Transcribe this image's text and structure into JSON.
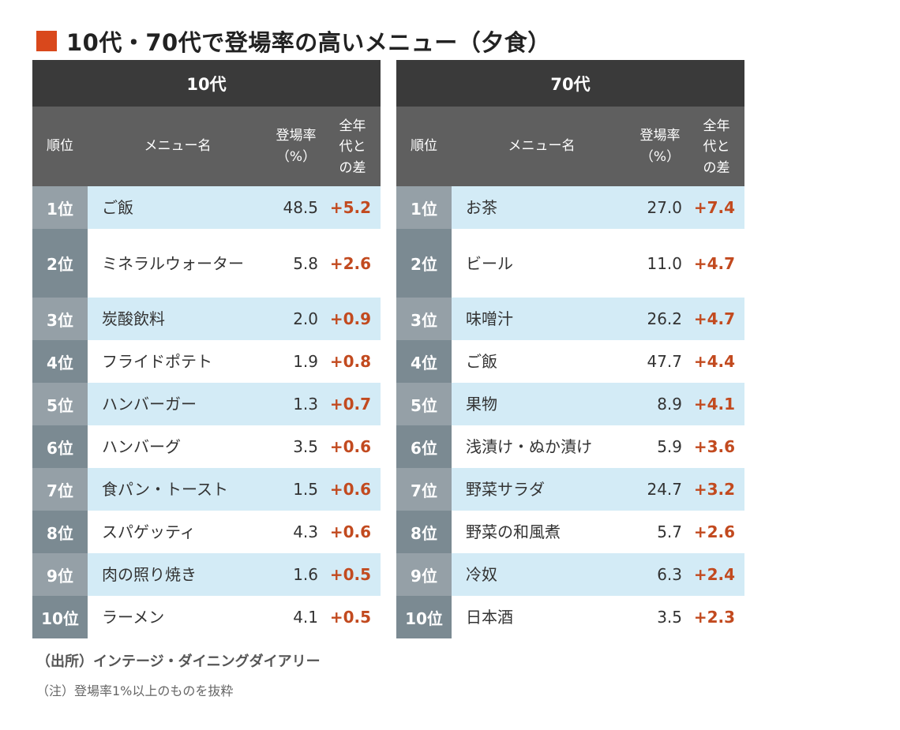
{
  "title": "10代・70代で登場率の高いメニュー（夕食）",
  "accent_color": "#d9481c",
  "diff_color": "#c24a1f",
  "chart_data": {
    "type": "table",
    "title": "10代・70代で登場率の高いメニュー（夕食）",
    "columns": {
      "rank": "順位",
      "name": "メニュー名",
      "rate": "登場率（%）",
      "diff": "全年代との差"
    },
    "tables": [
      {
        "group": "10代",
        "rows": [
          {
            "rank": "1位",
            "name": "ご飯",
            "rate": "48.5",
            "diff": "+5.2"
          },
          {
            "rank": "2位",
            "name": "ミネラルウォーター",
            "rate": "5.8",
            "diff": "+2.6"
          },
          {
            "rank": "3位",
            "name": "炭酸飲料",
            "rate": "2.0",
            "diff": "+0.9"
          },
          {
            "rank": "4位",
            "name": "フライドポテト",
            "rate": "1.9",
            "diff": "+0.8"
          },
          {
            "rank": "5位",
            "name": "ハンバーガー",
            "rate": "1.3",
            "diff": "+0.7"
          },
          {
            "rank": "6位",
            "name": "ハンバーグ",
            "rate": "3.5",
            "diff": "+0.6"
          },
          {
            "rank": "7位",
            "name": "食パン・トースト",
            "rate": "1.5",
            "diff": "+0.6"
          },
          {
            "rank": "8位",
            "name": "スパゲッティ",
            "rate": "4.3",
            "diff": "+0.6"
          },
          {
            "rank": "9位",
            "name": "肉の照り焼き",
            "rate": "1.6",
            "diff": "+0.5"
          },
          {
            "rank": "10位",
            "name": "ラーメン",
            "rate": "4.1",
            "diff": "+0.5"
          }
        ]
      },
      {
        "group": "70代",
        "rows": [
          {
            "rank": "1位",
            "name": "お茶",
            "rate": "27.0",
            "diff": "+7.4"
          },
          {
            "rank": "2位",
            "name": "ビール",
            "rate": "11.0",
            "diff": "+4.7"
          },
          {
            "rank": "3位",
            "name": "味噌汁",
            "rate": "26.2",
            "diff": "+4.7"
          },
          {
            "rank": "4位",
            "name": "ご飯",
            "rate": "47.7",
            "diff": "+4.4"
          },
          {
            "rank": "5位",
            "name": "果物",
            "rate": "8.9",
            "diff": "+4.1"
          },
          {
            "rank": "6位",
            "name": "浅漬け・ぬか漬け",
            "rate": "5.9",
            "diff": "+3.6"
          },
          {
            "rank": "7位",
            "name": "野菜サラダ",
            "rate": "24.7",
            "diff": "+3.2"
          },
          {
            "rank": "8位",
            "name": "野菜の和風煮",
            "rate": "5.7",
            "diff": "+2.6"
          },
          {
            "rank": "9位",
            "name": "冷奴",
            "rate": "6.3",
            "diff": "+2.4"
          },
          {
            "rank": "10位",
            "name": "日本酒",
            "rate": "3.5",
            "diff": "+2.3"
          }
        ]
      }
    ]
  },
  "source": "（出所）インテージ・ダイニングダイアリー",
  "note": "（注）登場率1%以上のものを抜粋"
}
